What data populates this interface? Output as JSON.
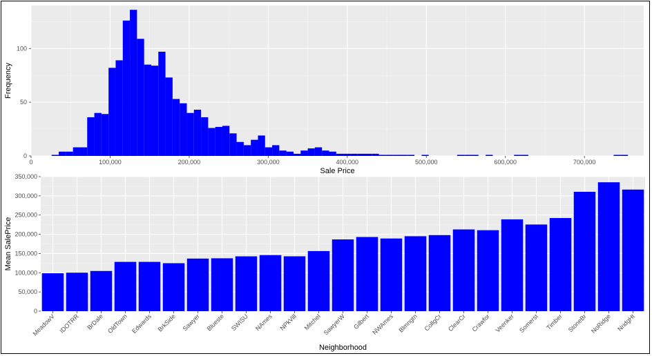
{
  "chart_data": [
    {
      "type": "bar",
      "subtype": "histogram",
      "xlabel": "Sale Price",
      "ylabel": "Frequency",
      "xlim": [
        0,
        775000
      ],
      "ylim": [
        0,
        140
      ],
      "x_ticks": [
        0,
        100000,
        200000,
        300000,
        400000,
        500000,
        600000,
        700000
      ],
      "x_tick_labels": [
        "0",
        "100,000",
        "200,000",
        "300,000",
        "400,000",
        "500,000",
        "600,000",
        "700,000"
      ],
      "y_ticks": [
        0,
        50,
        100
      ],
      "y_tick_labels": [
        "0",
        "50",
        "100"
      ],
      "grid": true,
      "bin_width": 9000,
      "bins_start": [
        26000,
        35000,
        44000,
        53000,
        62000,
        71000,
        80000,
        89000,
        98000,
        107000,
        116000,
        125000,
        134000,
        143000,
        152000,
        161000,
        170000,
        179000,
        188000,
        197000,
        206000,
        215000,
        224000,
        233000,
        242000,
        251000,
        260000,
        269000,
        278000,
        287000,
        296000,
        305000,
        314000,
        323000,
        332000,
        341000,
        350000,
        359000,
        368000,
        377000,
        386000,
        395000,
        404000,
        413000,
        422000,
        431000,
        440000,
        449000,
        458000,
        467000,
        476000,
        494000,
        539000,
        548000,
        557000,
        575000,
        611000,
        620000,
        737000,
        746000
      ],
      "counts": [
        1,
        4,
        4,
        8,
        8,
        36,
        40,
        39,
        82,
        89,
        126,
        136,
        109,
        85,
        84,
        97,
        73,
        53,
        49,
        40,
        43,
        36,
        26,
        27,
        28,
        21,
        13,
        10,
        15,
        19,
        8,
        10,
        5,
        4,
        2,
        5,
        7,
        8,
        5,
        4,
        2,
        2,
        2,
        2,
        2,
        2,
        1,
        1,
        1,
        1,
        1,
        1,
        1,
        1,
        1,
        1,
        1,
        1,
        1,
        1
      ]
    },
    {
      "type": "bar",
      "xlabel": "Neighborhood",
      "ylabel": "Mean SalePrice",
      "ylim": [
        0,
        350000
      ],
      "y_ticks": [
        0,
        50000,
        100000,
        150000,
        200000,
        250000,
        300000,
        350000
      ],
      "y_tick_labels": [
        "0",
        "50,000",
        "100,000",
        "150,000",
        "200,000",
        "250,000",
        "300,000",
        "350,000"
      ],
      "grid": true,
      "categories": [
        "MeadowV",
        "IDOTRR",
        "BrDale",
        "OldTown",
        "Edwards",
        "BrkSide",
        "Sawyer",
        "Blueste",
        "SWISU",
        "NAmes",
        "NPkVill",
        "Mitchel",
        "SawyerW",
        "Gilbert",
        "NWAmes",
        "Blmngtn",
        "CollgCr",
        "ClearCr",
        "Crawfor",
        "Veenker",
        "Somerst",
        "Timber",
        "StoneBr",
        "NoRidge",
        "NridgHt"
      ],
      "values": [
        98600,
        100100,
        104500,
        128200,
        128200,
        124800,
        136800,
        137500,
        142600,
        145800,
        142700,
        156300,
        186600,
        192900,
        189000,
        194900,
        197900,
        212600,
        210600,
        238800,
        225400,
        242200,
        310500,
        335300,
        316300
      ]
    }
  ],
  "colors": {
    "bar": "#0000ff",
    "panel": "#ebebeb",
    "grid_major": "#ffffff",
    "grid_minor": "#f5f5f5",
    "tick_text": "#4d4d4d"
  }
}
